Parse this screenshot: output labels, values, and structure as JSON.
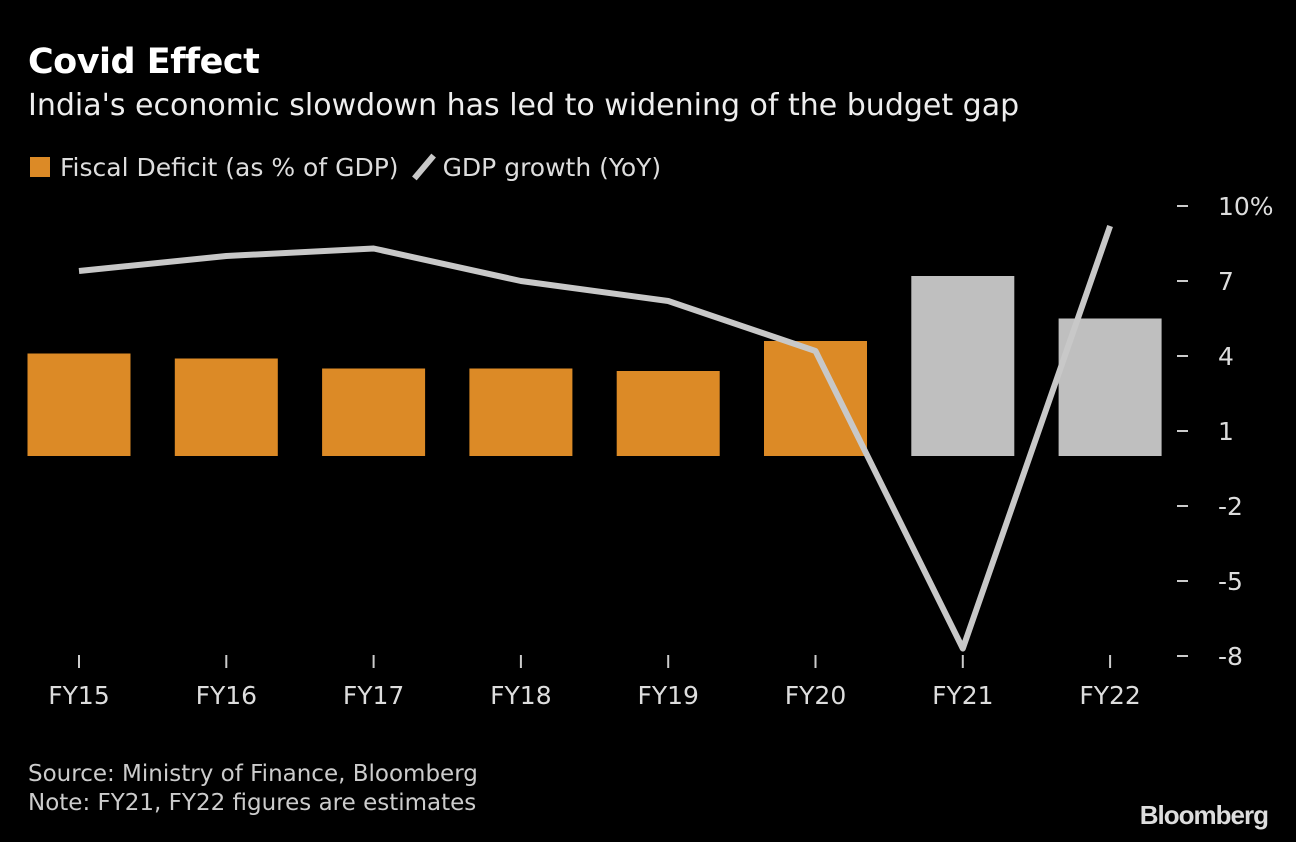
{
  "title": "Covid Effect",
  "subtitle": "India's economic slowdown has led to widening of the budget gap",
  "source": "Source: Ministry of Finance, Bloomberg",
  "note": "Note: FY21, FY22 figures are estimates",
  "logo": "Bloomberg",
  "chart_data": {
    "type": "bar+line",
    "categories": [
      "FY15",
      "FY16",
      "FY17",
      "FY18",
      "FY19",
      "FY20",
      "FY21",
      "FY22"
    ],
    "series": [
      {
        "name": "Fiscal Deficit (as % of GDP)",
        "type": "bar",
        "values": [
          4.1,
          3.9,
          3.5,
          3.5,
          3.4,
          4.6,
          7.2,
          5.5
        ],
        "color": "#dc8a26",
        "estimate_color": "#bfbfbf",
        "estimates": [
          "FY21",
          "FY22"
        ]
      },
      {
        "name": "GDP growth (YoY)",
        "type": "line",
        "values": [
          7.4,
          8.0,
          8.3,
          7.0,
          6.2,
          4.2,
          -7.7,
          9.2
        ],
        "color": "#c8c8c8"
      }
    ],
    "yticks": [
      10,
      7,
      4,
      1,
      -2,
      -5,
      -8
    ],
    "ytick_labels": [
      "10%",
      "7",
      "4",
      "1",
      "-2",
      "-5",
      "-8"
    ],
    "ylim": [
      -8,
      10
    ],
    "yaxis_position": "right",
    "grid": false,
    "legend_position": "top-left"
  }
}
